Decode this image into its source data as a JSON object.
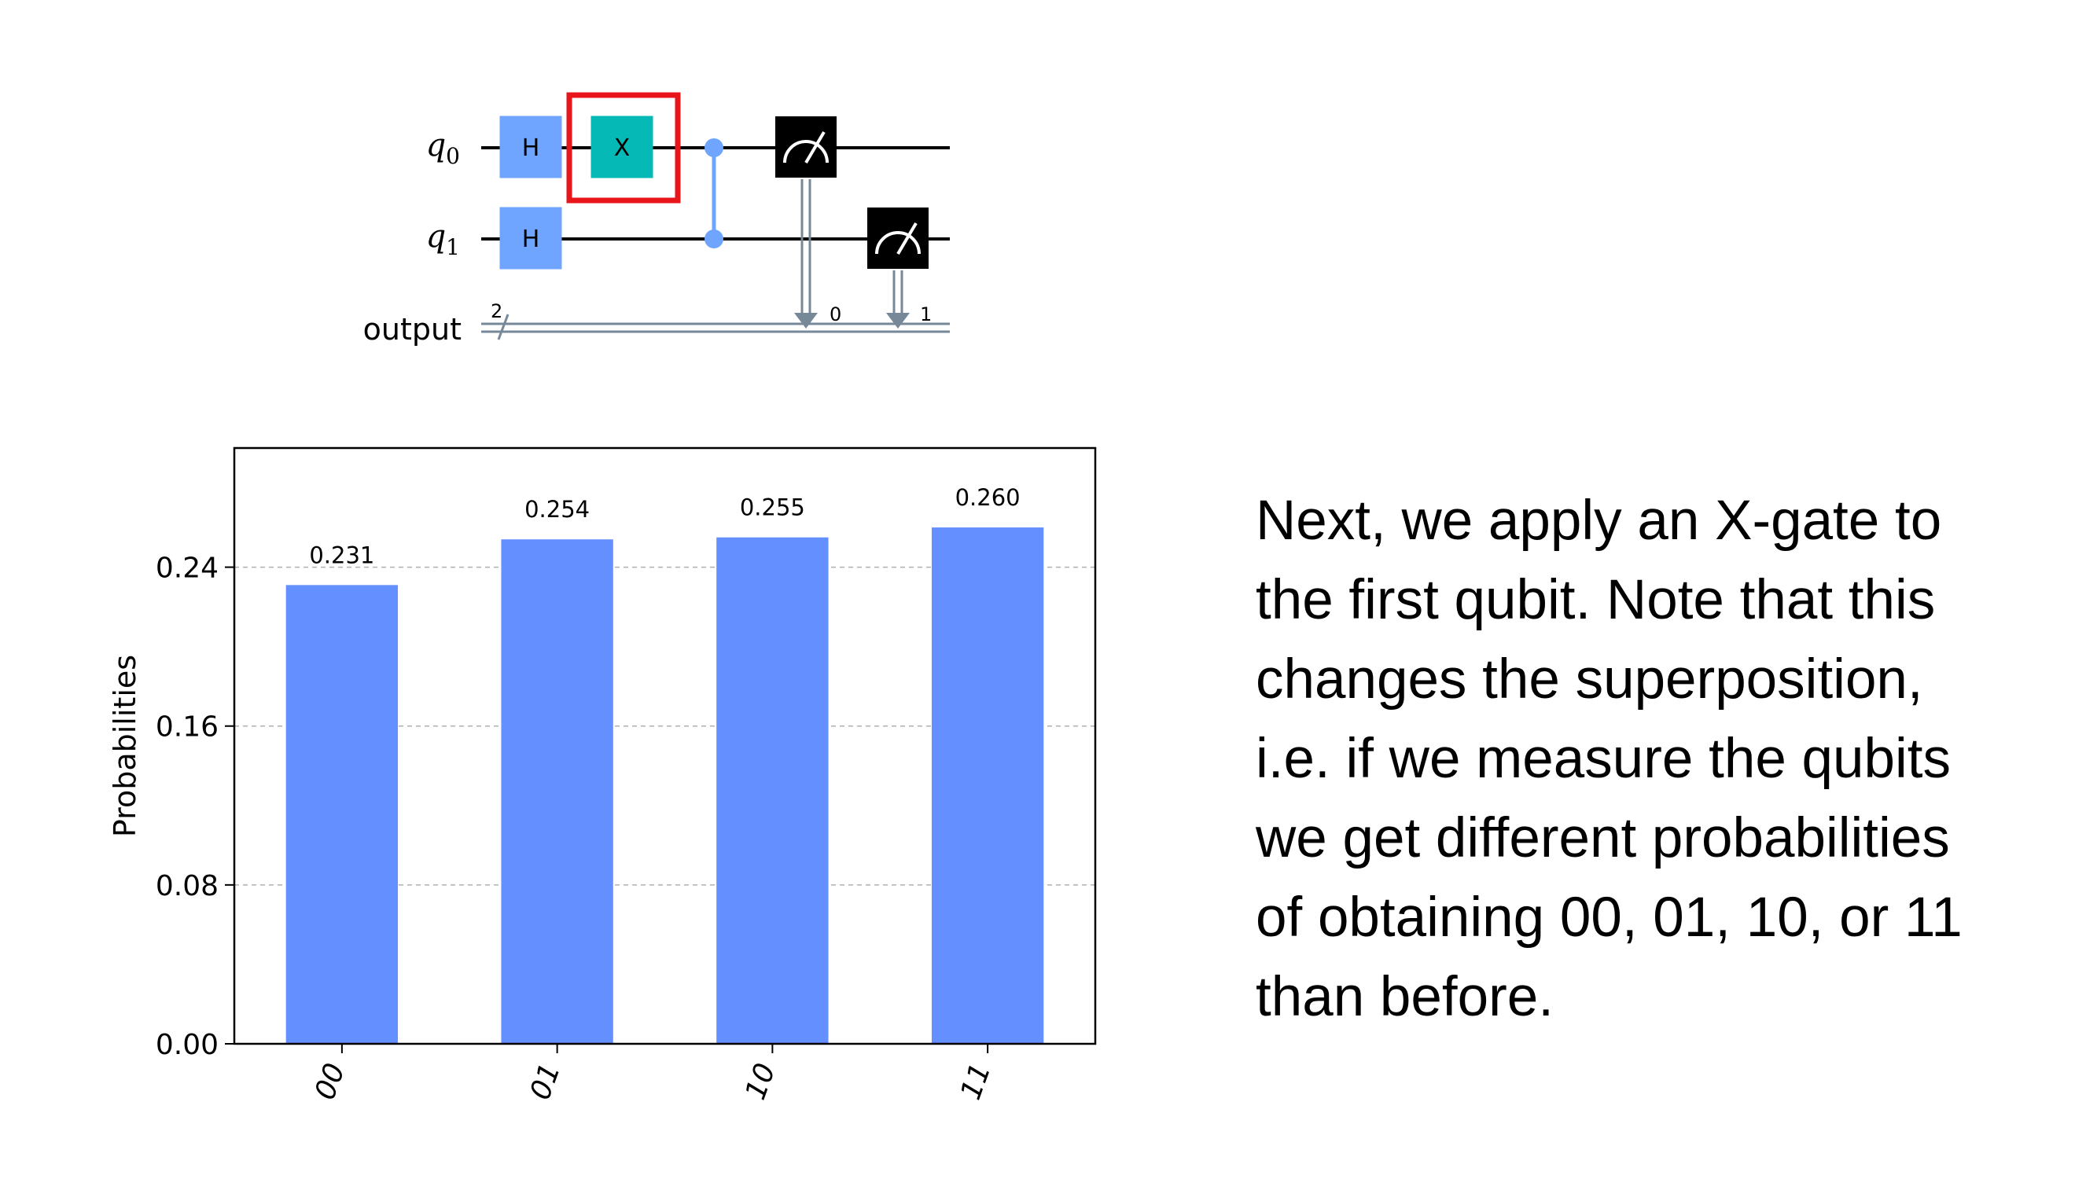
{
  "circuit": {
    "qubits": [
      {
        "name": "q",
        "index": "0"
      },
      {
        "name": "q",
        "index": "1"
      }
    ],
    "creg_label": "output",
    "creg_size": "2",
    "gates": {
      "h0": "H",
      "h1": "H",
      "x0": "X"
    },
    "measure_bits": [
      "0",
      "1"
    ],
    "highlight_color": "#e8151b",
    "colors": {
      "h": "#6fa4ff",
      "x": "#05bab6",
      "cx": "#6fa4ff",
      "measure": "#000000",
      "classical": "#778899"
    }
  },
  "chart_data": {
    "type": "bar",
    "categories": [
      "00",
      "01",
      "10",
      "11"
    ],
    "values": [
      0.231,
      0.254,
      0.255,
      0.26
    ],
    "value_labels": [
      "0.231",
      "0.254",
      "0.255",
      "0.260"
    ],
    "ylabel": "Probabilities",
    "ylim": [
      0,
      0.3
    ],
    "yticks": [
      0.0,
      0.08,
      0.16,
      0.24
    ],
    "ytick_labels": [
      "0.00",
      "0.08",
      "0.16",
      "0.24"
    ],
    "grid": true,
    "bar_color": "#648fff"
  },
  "text": {
    "lines": [
      "Next, we apply an X-gate to",
      "the first qubit. Note that this",
      "changes the superposition,",
      "i.e. if we measure the qubits",
      "we get different probabilities",
      "of obtaining 00, 01, 10, or 11",
      "than before."
    ]
  }
}
